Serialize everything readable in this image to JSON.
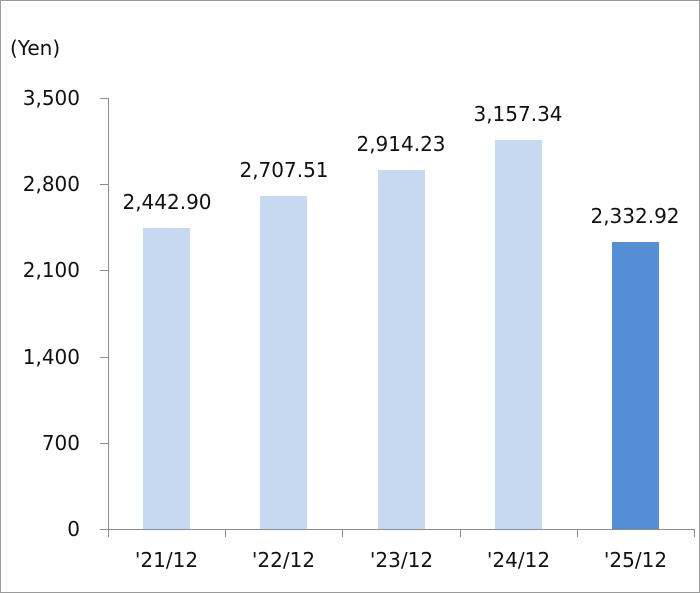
{
  "chart_data": {
    "type": "bar",
    "title": "",
    "xlabel": "",
    "ylabel": "(Yen)",
    "ylim": [
      0,
      3500
    ],
    "yticks": [
      0,
      700,
      1400,
      2100,
      2800,
      3500
    ],
    "ytick_labels": [
      "0",
      "700",
      "1,400",
      "2,100",
      "2,800",
      "3,500"
    ],
    "grid": false,
    "legend": null,
    "categories": [
      "'21/12",
      "'22/12",
      "'23/12",
      "'24/12",
      "'25/12"
    ],
    "values": [
      2442.9,
      2707.51,
      2914.23,
      3157.34,
      2332.92
    ],
    "value_labels": [
      "2,442.90",
      "2,707.51",
      "2,914.23",
      "3,157.34",
      "2,332.92"
    ],
    "bar_colors": [
      "#c6d9f1",
      "#c6d9f1",
      "#c6d9f1",
      "#c6d9f1",
      "#558ed5"
    ]
  },
  "axis": {
    "unit_label": "(Yen)"
  }
}
